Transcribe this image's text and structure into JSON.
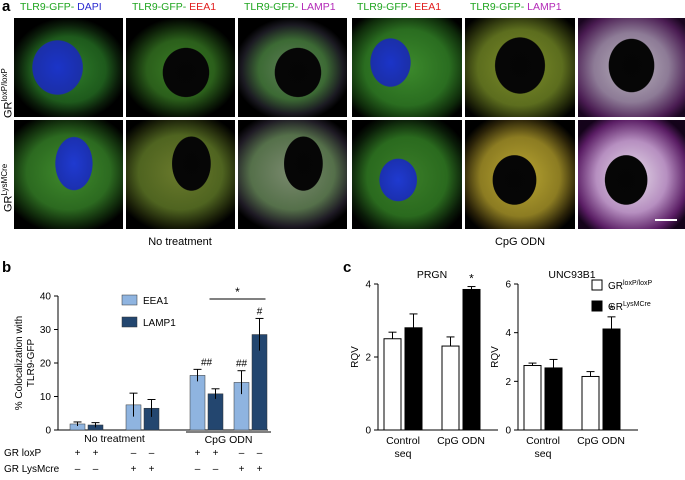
{
  "panel_a": {
    "letter": "a",
    "channel_labels": [
      {
        "green": "TLR9-GFP-",
        "second": "DAPI",
        "second_color": "#2b2bd0"
      },
      {
        "green": "TLR9-GFP-",
        "second": "EEA1",
        "second_color": "#e11d1d"
      },
      {
        "green": "TLR9-GFP-",
        "second": "LAMP1",
        "second_color": "#b42ab8"
      },
      {
        "green": "TLR9-GFP-",
        "second": "EEA1",
        "second_color": "#e11d1d"
      },
      {
        "green": "TLR9-GFP-",
        "second": "LAMP1",
        "second_color": "#b42ab8"
      }
    ],
    "row_labels": [
      {
        "base": "GR",
        "sup": "loxP/loxP"
      },
      {
        "base": "GR",
        "sup": "LysMCre"
      }
    ],
    "treatments": [
      "No treatment",
      "CpG ODN"
    ]
  },
  "panel_b": {
    "letter": "b",
    "chart_data": {
      "type": "bar",
      "ylabel": "% Colocalization with TLR9-GFP",
      "ylim": [
        0,
        40
      ],
      "yticks": [
        0,
        10,
        20,
        30,
        40
      ],
      "groups": [
        "No treatment",
        "CpG ODN"
      ],
      "series": [
        {
          "name": "EEA1",
          "color": "#8fb4e0",
          "values": [
            1.8,
            7.5,
            16.3,
            14.2
          ],
          "errors": [
            0.6,
            3.5,
            1.8,
            3.5
          ]
        },
        {
          "name": "LAMP1",
          "color": "#23466f",
          "values": [
            1.5,
            6.5,
            10.8,
            28.5
          ],
          "errors": [
            0.7,
            2.6,
            1.5,
            4.8
          ]
        }
      ],
      "annotations": [
        "##",
        "##",
        "#",
        "*"
      ],
      "genotype_rows": [
        {
          "label": "GR loxP",
          "marks": [
            "+",
            "+",
            "–",
            "–",
            "+",
            "+",
            "–",
            "–"
          ]
        },
        {
          "label": "GR LysMcre",
          "marks": [
            "–",
            "–",
            "+",
            "+",
            "–",
            "–",
            "+",
            "+"
          ]
        }
      ]
    }
  },
  "panel_c": {
    "letter": "c",
    "legend": [
      {
        "base": "GR",
        "sup": "loxP/loxP",
        "fill": "#ffffff"
      },
      {
        "base": "GR",
        "sup": "LysMCre",
        "fill": "#000000"
      }
    ],
    "charts": [
      {
        "type": "bar",
        "title": "PRGN",
        "ylabel": "RQV",
        "ylim": [
          0,
          4
        ],
        "yticks": [
          0,
          2,
          4
        ],
        "categories": [
          "Control seq",
          "CpG ODN"
        ],
        "series": [
          {
            "name": "GRloxP/loxP",
            "values": [
              2.5,
              2.3
            ],
            "errors": [
              0.18,
              0.25
            ]
          },
          {
            "name": "GRLysMCre",
            "values": [
              2.8,
              3.85
            ],
            "errors": [
              0.38,
              0.08
            ]
          }
        ],
        "annotations": [
          "*"
        ]
      },
      {
        "type": "bar",
        "title": "UNC93B1",
        "ylabel": "RQV",
        "ylim": [
          0,
          6
        ],
        "yticks": [
          0,
          2,
          4,
          6
        ],
        "categories": [
          "Control seq",
          "CpG ODN"
        ],
        "series": [
          {
            "name": "GRloxP/loxP",
            "values": [
              2.65,
              2.2
            ],
            "errors": [
              0.1,
              0.2
            ]
          },
          {
            "name": "GRLysMCre",
            "values": [
              2.55,
              4.15
            ],
            "errors": [
              0.35,
              0.5
            ]
          }
        ],
        "annotations": [
          "*"
        ]
      }
    ]
  }
}
